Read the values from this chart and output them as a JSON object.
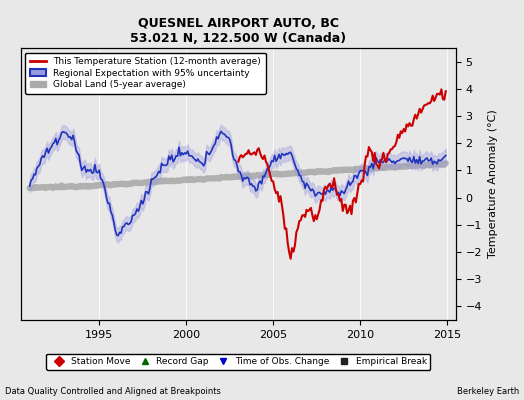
{
  "title": "QUESNEL AIRPORT AUTO, BC",
  "subtitle": "53.021 N, 122.500 W (Canada)",
  "ylabel": "Temperature Anomaly (°C)",
  "xlabel_left": "Data Quality Controlled and Aligned at Breakpoints",
  "xlabel_right": "Berkeley Earth",
  "ylim": [
    -4.5,
    5.5
  ],
  "xlim": [
    1990.5,
    2015.5
  ],
  "yticks": [
    -4,
    -3,
    -2,
    -1,
    0,
    1,
    2,
    3,
    4,
    5
  ],
  "xticks": [
    1995,
    2000,
    2005,
    2010,
    2015
  ],
  "bg_color": "#e8e8e8",
  "plot_bg_color": "#e8e8e8",
  "red_color": "#cc0000",
  "blue_color": "#2233bb",
  "blue_fill_color": "#9999dd",
  "gray_color": "#aaaaaa",
  "legend_items": [
    "This Temperature Station (12-month average)",
    "Regional Expectation with 95% uncertainty",
    "Global Land (5-year average)"
  ],
  "bottom_legend": [
    {
      "marker": "D",
      "color": "#cc0000",
      "label": "Station Move"
    },
    {
      "marker": "^",
      "color": "#006600",
      "label": "Record Gap"
    },
    {
      "marker": "v",
      "color": "#0000cc",
      "label": "Time of Obs. Change"
    },
    {
      "marker": "s",
      "color": "#222222",
      "label": "Empirical Break"
    }
  ]
}
